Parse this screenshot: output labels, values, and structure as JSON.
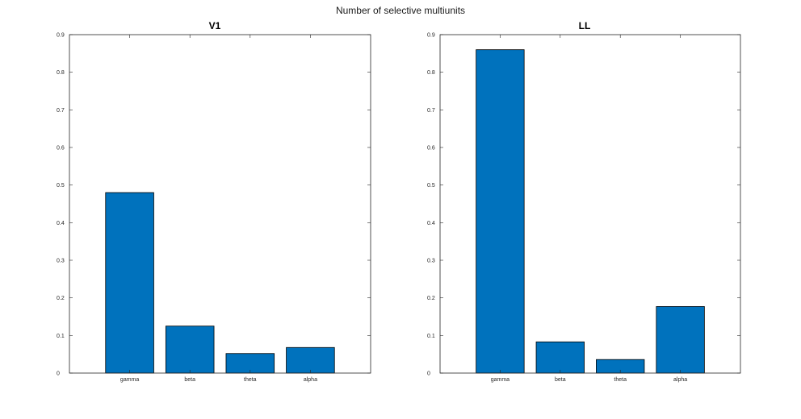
{
  "figure": {
    "suptitle": "Number of selective multiunits"
  },
  "chart_data": [
    {
      "type": "bar",
      "title": "V1",
      "categories": [
        "gamma",
        "beta",
        "theta",
        "alpha"
      ],
      "values": [
        0.48,
        0.125,
        0.052,
        0.068
      ],
      "xlabel": "",
      "ylabel": "",
      "ylim": [
        0,
        0.9
      ],
      "yticks": [
        0,
        0.1,
        0.2,
        0.3,
        0.4,
        0.5,
        0.6,
        0.7,
        0.8,
        0.9
      ],
      "ytick_labels": [
        "0",
        "0.1",
        "0.2",
        "0.3",
        "0.4",
        "0.5",
        "0.6",
        "0.7",
        "0.8",
        "0.9"
      ],
      "xlim": [
        0,
        5
      ],
      "bar_color": "#0072BD",
      "grid": false
    },
    {
      "type": "bar",
      "title": "LL",
      "categories": [
        "gamma",
        "beta",
        "theta",
        "alpha"
      ],
      "values": [
        0.86,
        0.083,
        0.036,
        0.177
      ],
      "xlabel": "",
      "ylabel": "",
      "ylim": [
        0,
        0.9
      ],
      "yticks": [
        0,
        0.1,
        0.2,
        0.3,
        0.4,
        0.5,
        0.6,
        0.7,
        0.8,
        0.9
      ],
      "ytick_labels": [
        "0",
        "0.1",
        "0.2",
        "0.3",
        "0.4",
        "0.5",
        "0.6",
        "0.7",
        "0.8",
        "0.9"
      ],
      "xlim": [
        0,
        5
      ],
      "bar_color": "#0072BD",
      "grid": false
    }
  ]
}
